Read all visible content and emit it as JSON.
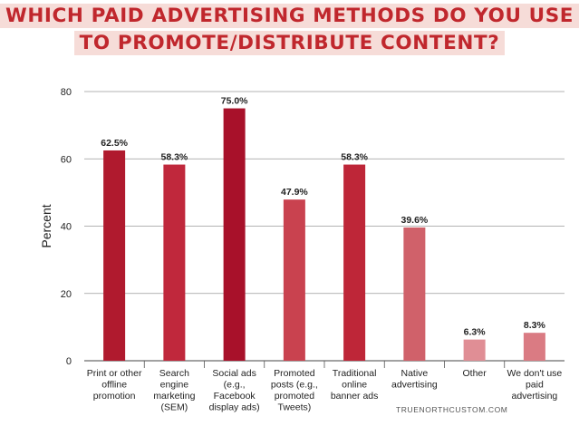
{
  "title_lines": [
    "WHICH PAID ADVERTISING METHODS DO YOU USE",
    "TO PROMOTE/DISTRIBUTE CONTENT?"
  ],
  "credit": "TRUENORTHCUSTOM.COM",
  "colors": {
    "title_text": "#c0272d",
    "title_highlight": "#f6dcd8",
    "bar_shades": [
      "#b01a2e",
      "#c0283c",
      "#a8112a",
      "#c9424f",
      "#be2638",
      "#d0616a",
      "#e08e95",
      "#da7b83"
    ]
  },
  "chart_data": {
    "type": "bar",
    "title": "WHICH PAID ADVERTISING METHODS DO YOU USE TO PROMOTE/DISTRIBUTE CONTENT?",
    "xlabel": "",
    "ylabel": "Percent",
    "ylim": [
      0,
      80
    ],
    "yticks": [
      0,
      20,
      40,
      60,
      80
    ],
    "grid": true,
    "categories": [
      [
        "Print or other",
        "offline",
        "promotion"
      ],
      [
        "Search",
        "engine",
        "marketing",
        "(SEM)"
      ],
      [
        "Social ads",
        "(e.g.,",
        "Facebook",
        "display ads)"
      ],
      [
        "Promoted",
        "posts (e.g.,",
        "promoted",
        "Tweets)"
      ],
      [
        "Traditional",
        "online",
        "banner ads"
      ],
      [
        "Native",
        "advertising"
      ],
      [
        "Other"
      ],
      [
        "We don't use",
        "paid",
        "advertising"
      ]
    ],
    "values": [
      62.5,
      58.3,
      75.0,
      47.9,
      58.3,
      39.6,
      6.3,
      8.3
    ],
    "value_labels": [
      "62.5%",
      "58.3%",
      "75.0%",
      "47.9%",
      "58.3%",
      "39.6%",
      "6.3%",
      "8.3%"
    ]
  }
}
